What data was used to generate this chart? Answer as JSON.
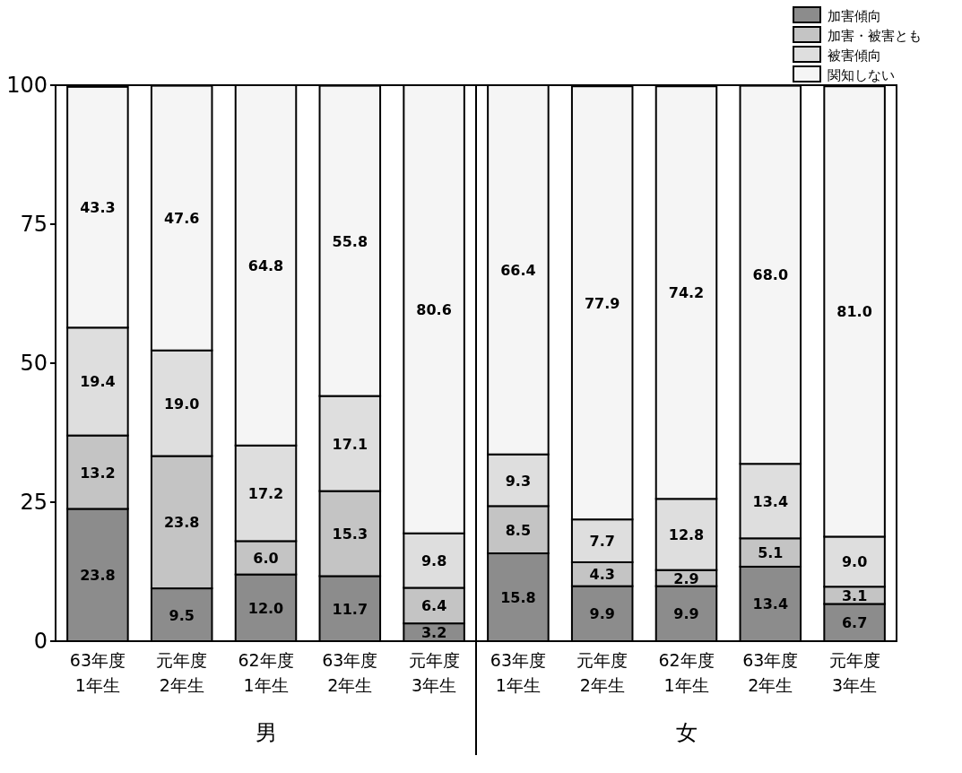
{
  "chart_data": {
    "type": "bar",
    "stacked": true,
    "categories": [
      "63年度\n1年生",
      "元年度\n2年生",
      "62年度\n1年生",
      "63年度\n2年生",
      "元年度\n3年生",
      "63年度\n1年生",
      "元年度\n2年生",
      "62年度\n1年生",
      "63年度\n2年生",
      "元年度\n3年生"
    ],
    "series": [
      {
        "name": "加害傾向",
        "color": "#8c8c8c",
        "values": [
          23.8,
          9.5,
          12.0,
          11.7,
          3.2,
          15.8,
          9.9,
          9.9,
          13.4,
          6.7
        ],
        "value_labels": [
          "23.8",
          "9.5",
          "12.0",
          "11.7",
          "3.2",
          "15.8",
          "9.9",
          "9.9",
          "13.4",
          "6.7"
        ]
      },
      {
        "name": "加害・被害とも",
        "color": "#c4c4c4",
        "values": [
          13.2,
          23.8,
          6.0,
          15.3,
          6.4,
          8.5,
          4.3,
          2.9,
          5.1,
          3.1
        ],
        "value_labels": [
          "13.2",
          "23.8",
          "6.0",
          "15.3",
          "6.4",
          "8.5",
          "4.3",
          "2.9",
          "5.1",
          "3.1"
        ]
      },
      {
        "name": "被害傾向",
        "color": "#dedede",
        "values": [
          19.4,
          19.0,
          17.2,
          17.1,
          9.8,
          9.3,
          7.7,
          12.8,
          13.4,
          9.0
        ],
        "value_labels": [
          "19.4",
          "19.0",
          "17.2",
          "17.1",
          "9.8",
          "9.3",
          "7.7",
          "12.8",
          "13.4",
          "9.0"
        ]
      },
      {
        "name": "関知しない",
        "color": "#f5f5f5",
        "values": [
          43.3,
          47.6,
          64.8,
          55.8,
          80.6,
          66.4,
          77.9,
          74.2,
          68.0,
          81.0
        ],
        "value_labels": [
          "43.3",
          "47.6",
          "64.8",
          "55.8",
          "80.6",
          "66.4",
          "77.9",
          "74.2",
          "68.0",
          "81.0"
        ]
      }
    ],
    "ylim": [
      0,
      100
    ],
    "yticks": [
      0,
      25,
      50,
      75,
      100
    ],
    "legend": "top right",
    "annotations": [
      "男",
      "女"
    ]
  }
}
